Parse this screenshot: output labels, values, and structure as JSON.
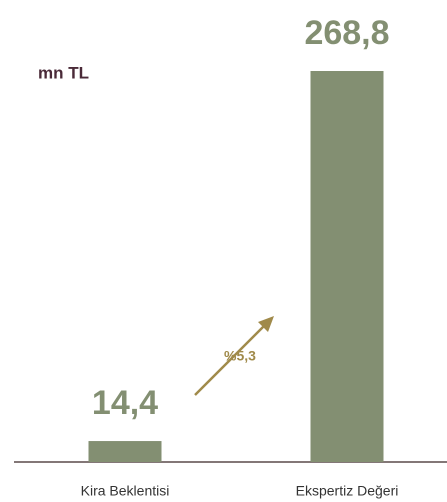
{
  "chart_data": {
    "type": "bar",
    "title": "mn TL",
    "categories": [
      "Kira Beklentisi",
      "Ekspertiz Değeri"
    ],
    "values": [
      14.4,
      268.8
    ],
    "value_labels": [
      "14,4",
      "268,8"
    ],
    "color": "#838f72",
    "annotation": "%5,3"
  }
}
